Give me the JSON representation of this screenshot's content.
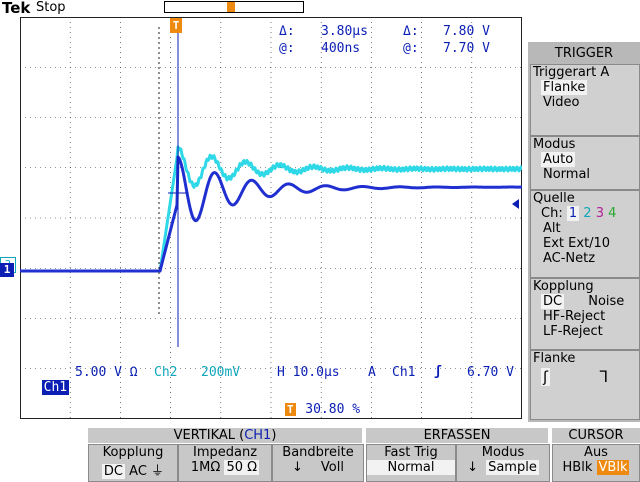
{
  "topbar": {
    "brand": "Tek",
    "status": "Stop"
  },
  "cursor_readout": {
    "delta_time_label": "Δ:",
    "delta_time": "3.80μs",
    "delta_volt_label": "Δ:",
    "delta_volt": "7.80 V",
    "at_time_label": "@:",
    "at_time": "400ns",
    "at_volt_label": "@:",
    "at_volt": "7.70 V"
  },
  "markers": {
    "trigger": "T",
    "ch2_marker": "2",
    "ch1_marker": "1"
  },
  "status_line": {
    "ch1_label": "Ch1",
    "ch1_scale": "5.00 V Ω",
    "ch2_label": "Ch2",
    "ch2_scale": "200mV",
    "timebase": "H 10.0μs",
    "acq": "A",
    "trig_source": "Ch1",
    "trig_level": "6.70 V",
    "trig_position": "30.80 %"
  },
  "trigger_menu": {
    "title": "TRIGGER",
    "type": {
      "title": "Triggerart A",
      "options": [
        "Flanke",
        "Video"
      ],
      "selected": "Flanke"
    },
    "mode": {
      "title": "Modus",
      "options": [
        "Auto",
        "Normal"
      ],
      "selected": "Auto"
    },
    "source": {
      "title": "Quelle",
      "prefix": "Ch:",
      "channels": [
        "1",
        "2",
        "3",
        "4"
      ],
      "opt_alt": "Alt",
      "opt_ext": "Ext",
      "opt_ext10": "Ext/10",
      "opt_ac": "AC-Netz"
    },
    "coupling": {
      "title": "Kopplung",
      "dc": "DC",
      "noise": "Noise",
      "hf": "HF-Reject",
      "lf": "LF-Reject"
    },
    "slope": {
      "title": "Flanke",
      "rising": "ʃ",
      "falling": "ᒣ"
    }
  },
  "bottom_menu": {
    "vertical_title": "VERTIKAL (",
    "vertical_ch": "CH1",
    "vertical_close": ")",
    "coupling_label": "Kopplung",
    "coupling_dc": "DC",
    "coupling_ac": "AC",
    "coupling_gnd": "⏚",
    "impedance_label": "Impedanz",
    "impedance_1m": "1MΩ",
    "impedance_50": "50 Ω",
    "bandwidth_label": "Bandbreite",
    "bandwidth_value": "Voll",
    "acquire_title": "ERFASSEN",
    "fasttrig_label": "Fast Trig",
    "fasttrig_value": "Normal",
    "mode_label": "Modus",
    "mode_value": "Sample",
    "cursor_title": "CURSOR",
    "cursor_off": "Aus",
    "cursor_hbar": "HBlk",
    "cursor_vbar": "VBlk"
  },
  "colors": {
    "ch1": "#0b1fb4",
    "ch2": "#10a7bd",
    "ch3": "#b0239a",
    "ch4": "#29a82d",
    "trigger": "#ee8a0f",
    "grid": "#1a1a1a"
  }
}
